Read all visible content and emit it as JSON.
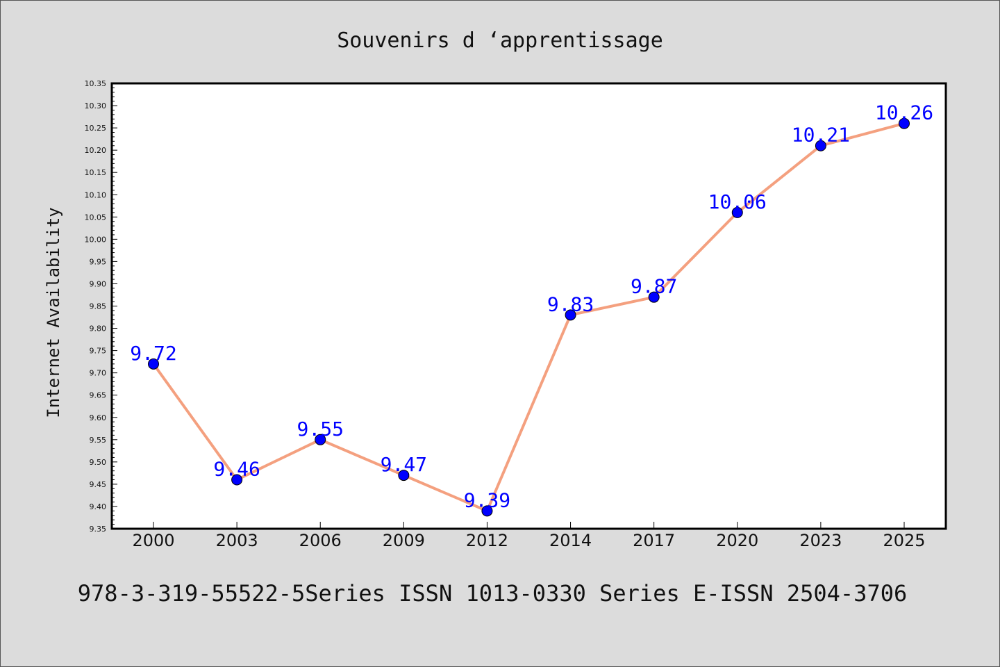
{
  "chart_data": {
    "type": "line",
    "title": "Souvenirs d ‘apprentissage",
    "xlabel": "",
    "ylabel": "Internet Availability",
    "categories": [
      "2000",
      "2003",
      "2006",
      "2009",
      "2012",
      "2014",
      "2017",
      "2020",
      "2023",
      "2025"
    ],
    "series": [
      {
        "values": [
          9.72,
          9.46,
          9.55,
          9.47,
          9.39,
          9.83,
          9.87,
          10.06,
          10.21,
          10.26
        ]
      }
    ],
    "data_labels": [
      "9.72",
      "9.46",
      "9.55",
      "9.47",
      "9.39",
      "9.83",
      "9.87",
      "10.06",
      "10.21",
      "10.26"
    ],
    "ylim": [
      9.35,
      10.35
    ],
    "yticks": [
      "9.35",
      "9.40",
      "9.45",
      "9.50",
      "9.55",
      "9.60",
      "9.65",
      "9.70",
      "9.75",
      "9.80",
      "9.85",
      "9.90",
      "9.95",
      "10.00",
      "10.05",
      "10.10",
      "10.15",
      "10.20",
      "10.25",
      "10.30",
      "10.35"
    ],
    "grid": false,
    "legend": "none",
    "line_color": "#f4a07f",
    "marker_color": "#0000ff",
    "label_color": "#0000ff",
    "plot_background": "#ffffff",
    "figure_background": "#dcdcdc"
  },
  "footer_text": "978-3-319-55522-5Series ISSN 1013-0330 Series E-ISSN 2504-3706"
}
